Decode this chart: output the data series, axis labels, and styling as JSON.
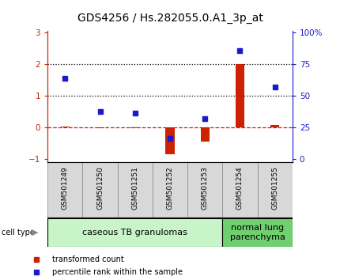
{
  "title": "GDS4256 / Hs.282055.0.A1_3p_at",
  "samples": [
    "GSM501249",
    "GSM501250",
    "GSM501251",
    "GSM501252",
    "GSM501253",
    "GSM501254",
    "GSM501255"
  ],
  "transformed_count": [
    0.02,
    -0.03,
    -0.02,
    -0.85,
    -0.45,
    2.0,
    0.07
  ],
  "percentile_rank": [
    1.55,
    0.5,
    0.45,
    -0.35,
    0.28,
    2.42,
    1.28
  ],
  "cell_types": [
    {
      "label": "caseous TB granulomas",
      "start": 0,
      "end": 5,
      "color": "#c8f5c8"
    },
    {
      "label": "normal lung\nparenchyma",
      "start": 5,
      "end": 7,
      "color": "#70d070"
    }
  ],
  "ylim": [
    -1.1,
    3.05
  ],
  "yticks_left": [
    -1,
    0,
    1,
    2,
    3
  ],
  "yticks_right_vals": [
    "0",
    "25",
    "50",
    "75",
    "100%"
  ],
  "yticks_right_pos": [
    -1,
    0,
    1,
    2,
    3
  ],
  "hlines_dotted": [
    1,
    2
  ],
  "red_color": "#cc2200",
  "blue_color": "#1a1acc",
  "bar_width": 0.25,
  "title_fontsize": 10,
  "tick_fontsize": 7.5,
  "sample_fontsize": 6.5,
  "legend_fontsize": 7,
  "ct_fontsize": 8,
  "cell_type_label_fontsize": 7
}
